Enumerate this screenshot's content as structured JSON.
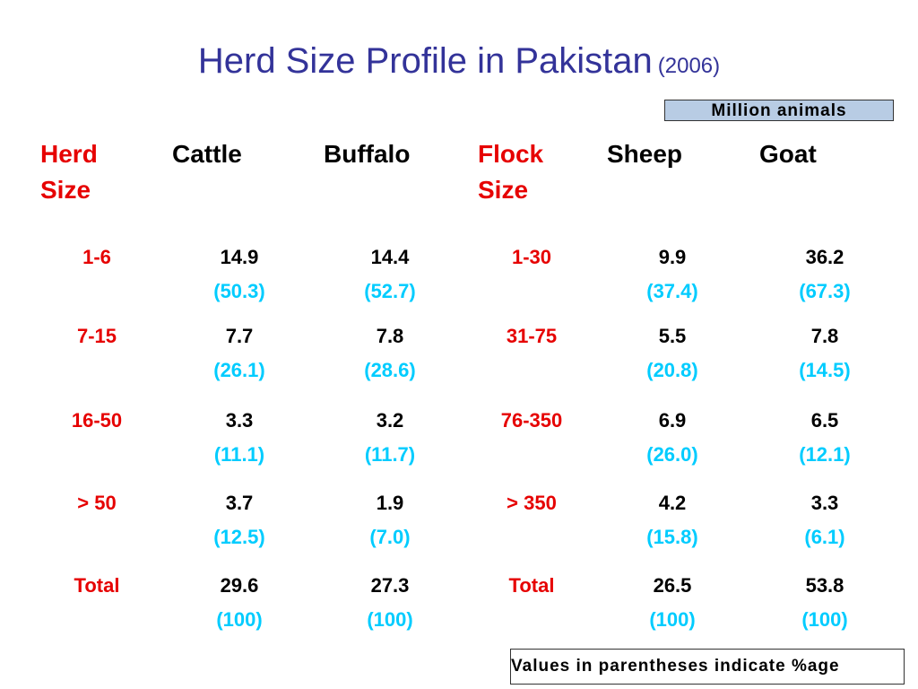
{
  "title": {
    "main": "Herd Size Profile in Pakistan",
    "year": "(2006)"
  },
  "units_label": "Million animals",
  "note": "Values in parentheses indicate %age",
  "headers": {
    "herd_size": [
      "Herd",
      "Size"
    ],
    "cattle": "Cattle",
    "buffalo": "Buffalo",
    "flock_size": [
      "Flock",
      "Size"
    ],
    "sheep": "Sheep",
    "goat": "Goat"
  },
  "rows": [
    {
      "herd": "1-6",
      "cattle": "14.9",
      "cattle_pct": "(50.3)",
      "buffalo": "14.4",
      "buffalo_pct": "(52.7)",
      "flock": "1-30",
      "sheep": "9.9",
      "sheep_pct": "(37.4)",
      "goat": "36.2",
      "goat_pct": "(67.3)"
    },
    {
      "herd": "7-15",
      "cattle": "7.7",
      "cattle_pct": "(26.1)",
      "buffalo": "7.8",
      "buffalo_pct": "(28.6)",
      "flock": "31-75",
      "sheep": "5.5",
      "sheep_pct": "(20.8)",
      "goat": "7.8",
      "goat_pct": "(14.5)"
    },
    {
      "herd": "16-50",
      "cattle": "3.3",
      "cattle_pct": "(11.1)",
      "buffalo": "3.2",
      "buffalo_pct": "(11.7)",
      "flock": "76-350",
      "sheep": "6.9",
      "sheep_pct": "(26.0)",
      "goat": "6.5",
      "goat_pct": "(12.1)"
    },
    {
      "herd": "> 50",
      "cattle": "3.7",
      "cattle_pct": "(12.5)",
      "buffalo": "1.9",
      "buffalo_pct": "(7.0)",
      "flock": "> 350",
      "sheep": "4.2",
      "sheep_pct": "(15.8)",
      "goat": "3.3",
      "goat_pct": "(6.1)"
    },
    {
      "herd": "Total",
      "cattle": "29.6",
      "cattle_pct": "(100)",
      "buffalo": "27.3",
      "buffalo_pct": "(100)",
      "flock": "Total",
      "sheep": "26.5",
      "sheep_pct": "(100)",
      "goat": "53.8",
      "goat_pct": "(100)"
    }
  ],
  "colors": {
    "title": "#333399",
    "label": "#e60000",
    "percent": "#00ccff",
    "units_box": "#b8cce4"
  }
}
